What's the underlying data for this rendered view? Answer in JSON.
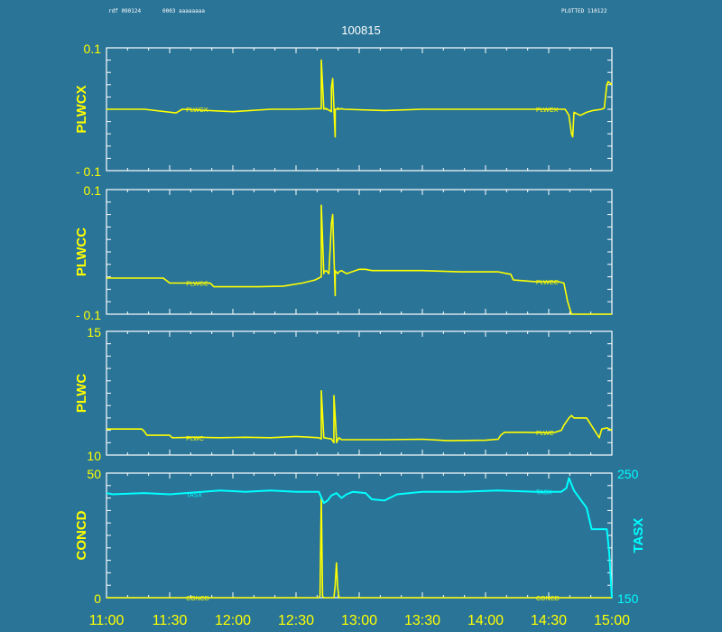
{
  "header": {
    "left_id": "rdf 090124",
    "left_note": "0003 aaaaaaaa",
    "right_note": "PLOTTED 110122"
  },
  "title": "100815",
  "colors": {
    "background": "#2a7497",
    "frame": "#ffffff",
    "primary": "#ffff00",
    "secondary": "#00ffff"
  },
  "x_axis": {
    "labels": [
      "11:00",
      "11:30",
      "12:00",
      "12:30",
      "13:00",
      "13:30",
      "14:00",
      "14:30",
      "15:00"
    ],
    "range_hours": [
      11,
      15
    ]
  },
  "chart_data": [
    {
      "type": "line",
      "ylabel": "PLWCX",
      "ylim": [
        -0.1,
        0.1
      ],
      "ytick_labels": [
        "0.1",
        "- 0.1"
      ],
      "series": [
        {
          "name": "PLWCX",
          "color": "#ffff00",
          "x": [
            11.0,
            11.3,
            11.55,
            11.6,
            12.0,
            12.3,
            12.48,
            12.7,
            12.7,
            12.72,
            12.72,
            12.74,
            12.74,
            12.78,
            12.78,
            12.79,
            12.81,
            12.81,
            12.83,
            12.83,
            12.84,
            12.84,
            12.86,
            12.88,
            13.2,
            13.5,
            13.8,
            14.1,
            14.3,
            14.5,
            14.63,
            14.66,
            14.68,
            14.69,
            14.7,
            14.75,
            14.8,
            14.85,
            14.92,
            14.94,
            14.96,
            14.97,
            15.0
          ],
          "y": [
            0.0,
            0.0,
            -0.006,
            0.0,
            -0.004,
            0.0,
            0.0,
            0.001,
            0.08,
            0.0,
            0.002,
            0.0,
            0.001,
            -0.004,
            0.035,
            0.05,
            -0.045,
            0.0,
            0.0,
            0.002,
            0.0,
            0.0,
            0.001,
            0.0,
            -0.002,
            0.0,
            0.0,
            0.0,
            0.0,
            0.0,
            0.0,
            -0.01,
            -0.04,
            -0.045,
            -0.005,
            -0.01,
            -0.005,
            -0.002,
            0.0,
            0.002,
            0.04,
            0.045,
            0.04
          ]
        }
      ],
      "series_tags": [
        {
          "text": "PLWCX",
          "x": 11.63
        },
        {
          "text": "PLWCX",
          "x": 14.4
        }
      ]
    },
    {
      "type": "line",
      "ylabel": "PLWCC",
      "ylim": [
        -0.1,
        0.1
      ],
      "ytick_labels": [
        "0.1",
        "- 0.1"
      ],
      "series": [
        {
          "name": "PLWCC",
          "color": "#ffff00",
          "x": [
            11.0,
            11.3,
            11.45,
            11.5,
            11.82,
            11.85,
            12.2,
            12.4,
            12.55,
            12.65,
            12.7,
            12.7,
            12.72,
            12.72,
            12.74,
            12.76,
            12.78,
            12.79,
            12.81,
            12.81,
            12.83,
            12.84,
            12.86,
            12.9,
            13.0,
            13.05,
            13.1,
            13.5,
            13.8,
            14.1,
            14.2,
            14.22,
            14.4,
            14.58,
            14.62,
            14.63,
            14.65,
            14.68,
            14.7,
            15.0
          ],
          "y": [
            -0.042,
            -0.042,
            -0.042,
            -0.05,
            -0.05,
            -0.056,
            -0.056,
            -0.055,
            -0.05,
            -0.045,
            -0.04,
            0.075,
            -0.035,
            -0.032,
            -0.03,
            -0.035,
            0.045,
            0.06,
            -0.07,
            -0.03,
            -0.035,
            -0.032,
            -0.03,
            -0.035,
            -0.028,
            -0.028,
            -0.03,
            -0.03,
            -0.032,
            -0.032,
            -0.036,
            -0.045,
            -0.048,
            -0.048,
            -0.05,
            -0.06,
            -0.08,
            -0.1,
            -0.1,
            -0.1
          ]
        }
      ],
      "series_tags": [
        {
          "text": "PLWCC",
          "x": 11.63
        },
        {
          "text": "PLWCC",
          "x": 14.4
        }
      ]
    },
    {
      "type": "line",
      "ylabel": "PLWC",
      "ylim": [
        10,
        15
      ],
      "ytick_labels": [
        "15",
        "10"
      ],
      "series": [
        {
          "name": "PLWC",
          "color": "#ffff00",
          "x": [
            11.0,
            11.28,
            11.3,
            11.32,
            11.5,
            11.52,
            11.7,
            11.9,
            12.1,
            12.3,
            12.5,
            12.68,
            12.7,
            12.7,
            12.72,
            12.72,
            12.78,
            12.8,
            12.8,
            12.82,
            12.82,
            12.84,
            12.86,
            13.0,
            13.2,
            13.5,
            13.7,
            14.0,
            14.1,
            14.12,
            14.15,
            14.3,
            14.5,
            14.55,
            14.6,
            14.62,
            14.66,
            14.68,
            14.7,
            14.8,
            14.9,
            14.92,
            14.96,
            15.0
          ],
          "y": [
            11.05,
            11.05,
            10.95,
            10.8,
            10.8,
            10.7,
            10.72,
            10.7,
            10.72,
            10.7,
            10.75,
            10.7,
            10.65,
            12.6,
            10.7,
            10.7,
            10.65,
            10.5,
            12.4,
            10.7,
            10.5,
            10.7,
            10.62,
            10.62,
            10.62,
            10.64,
            10.58,
            10.6,
            10.64,
            10.8,
            10.92,
            10.92,
            10.9,
            10.92,
            11.0,
            11.2,
            11.5,
            11.6,
            11.5,
            11.5,
            10.7,
            11.05,
            11.1,
            11.0
          ]
        }
      ],
      "series_tags": [
        {
          "text": "PLWC",
          "x": 11.63
        },
        {
          "text": "PLWC",
          "x": 14.4
        }
      ]
    },
    {
      "type": "line",
      "ylabel": "CONCD",
      "ylim": [
        0,
        50
      ],
      "ytick_labels": [
        "50",
        "0"
      ],
      "ylabel_right": "TASX",
      "ylim_right": [
        150,
        250
      ],
      "ytick_labels_right": [
        "250",
        "150"
      ],
      "series": [
        {
          "name": "CONCD",
          "color": "#ffff00",
          "axis": "left",
          "x": [
            11.0,
            12.5,
            12.68,
            12.69,
            12.7,
            12.71,
            12.72,
            12.8,
            12.81,
            12.82,
            12.83,
            12.84,
            13.5,
            14.5,
            15.0
          ],
          "y": [
            0,
            0,
            0,
            0.8,
            40,
            0.6,
            0,
            0,
            5,
            14,
            4,
            0,
            0,
            0,
            0
          ]
        },
        {
          "name": "TASX",
          "color": "#00ffff",
          "axis": "right",
          "x": [
            11.0,
            11.05,
            11.3,
            11.5,
            11.9,
            12.1,
            12.3,
            12.5,
            12.68,
            12.72,
            12.75,
            12.78,
            12.82,
            12.86,
            12.9,
            12.95,
            13.05,
            13.1,
            13.2,
            13.3,
            13.5,
            13.8,
            14.1,
            14.4,
            14.6,
            14.64,
            14.66,
            14.7,
            14.8,
            14.84,
            14.9,
            14.96,
            14.98,
            15.0
          ],
          "y": [
            234,
            233,
            234,
            233,
            236,
            235,
            236,
            235,
            235,
            226,
            228,
            232,
            234,
            230,
            233,
            235,
            234,
            229,
            228,
            233,
            235,
            235,
            236,
            235,
            235,
            238,
            246,
            236,
            222,
            205,
            205,
            205,
            185,
            150
          ]
        }
      ],
      "series_tags": [
        {
          "text": "CONCD",
          "x": 11.63,
          "axis": "left"
        },
        {
          "text": "CONCD",
          "x": 14.4,
          "axis": "left"
        },
        {
          "text": "TASX",
          "x": 11.63,
          "axis": "right"
        },
        {
          "text": "TASX",
          "x": 14.4,
          "axis": "right"
        }
      ]
    }
  ]
}
